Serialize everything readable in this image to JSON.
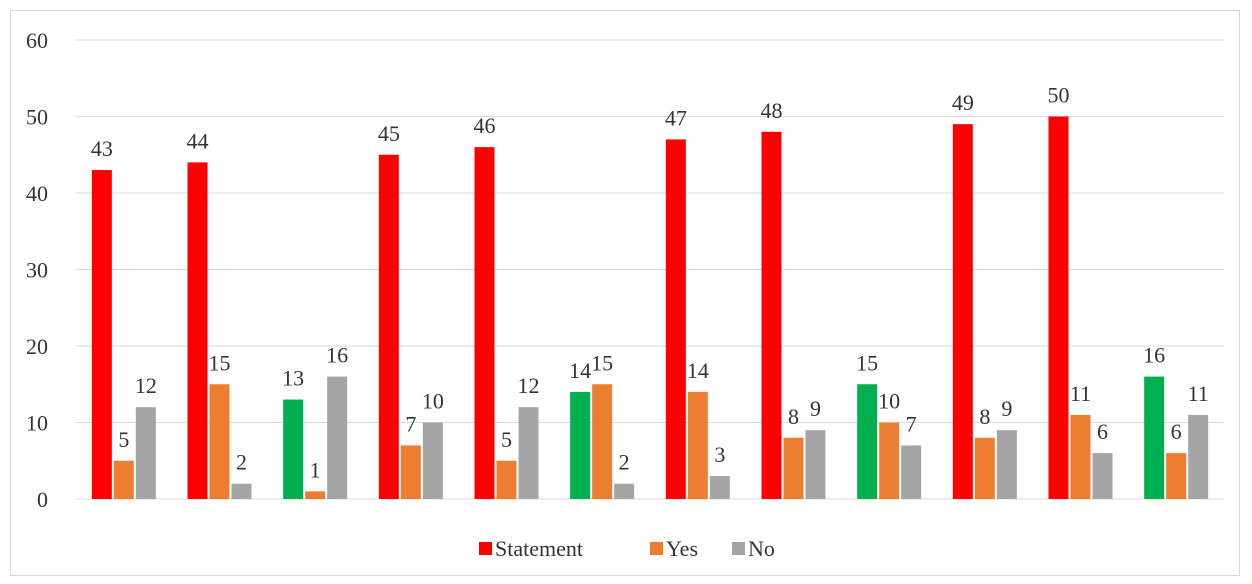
{
  "chart_data": {
    "type": "bar",
    "title": "",
    "xlabel": "",
    "ylabel": "",
    "ylim": [
      0,
      60
    ],
    "yticks": [
      0,
      10,
      20,
      30,
      40,
      50,
      60
    ],
    "grid": true,
    "legend_position": "bottom",
    "legend": [
      "Statement",
      "Yes",
      "No"
    ],
    "colors": {
      "statement_red": "#ff0000",
      "statement_green": "#00b050",
      "yes": "#ed7d31",
      "no": "#a5a5a5",
      "grid": "#d9d9d9"
    },
    "groups": [
      {
        "statement": 43,
        "statement_color": "red",
        "yes": 5,
        "no": 12
      },
      {
        "statement": 44,
        "statement_color": "red",
        "yes": 15,
        "no": 2
      },
      {
        "statement": 13,
        "statement_color": "green",
        "yes": 1,
        "no": 16
      },
      {
        "statement": 45,
        "statement_color": "red",
        "yes": 7,
        "no": 10
      },
      {
        "statement": 46,
        "statement_color": "red",
        "yes": 5,
        "no": 12
      },
      {
        "statement": 14,
        "statement_color": "green",
        "yes": 15,
        "no": 2
      },
      {
        "statement": 47,
        "statement_color": "red",
        "yes": 14,
        "no": 3
      },
      {
        "statement": 48,
        "statement_color": "red",
        "yes": 8,
        "no": 9
      },
      {
        "statement": 15,
        "statement_color": "green",
        "yes": 10,
        "no": 7
      },
      {
        "statement": 49,
        "statement_color": "red",
        "yes": 8,
        "no": 9
      },
      {
        "statement": 50,
        "statement_color": "red",
        "yes": 11,
        "no": 6
      },
      {
        "statement": 16,
        "statement_color": "green",
        "yes": 6,
        "no": 11
      }
    ]
  }
}
